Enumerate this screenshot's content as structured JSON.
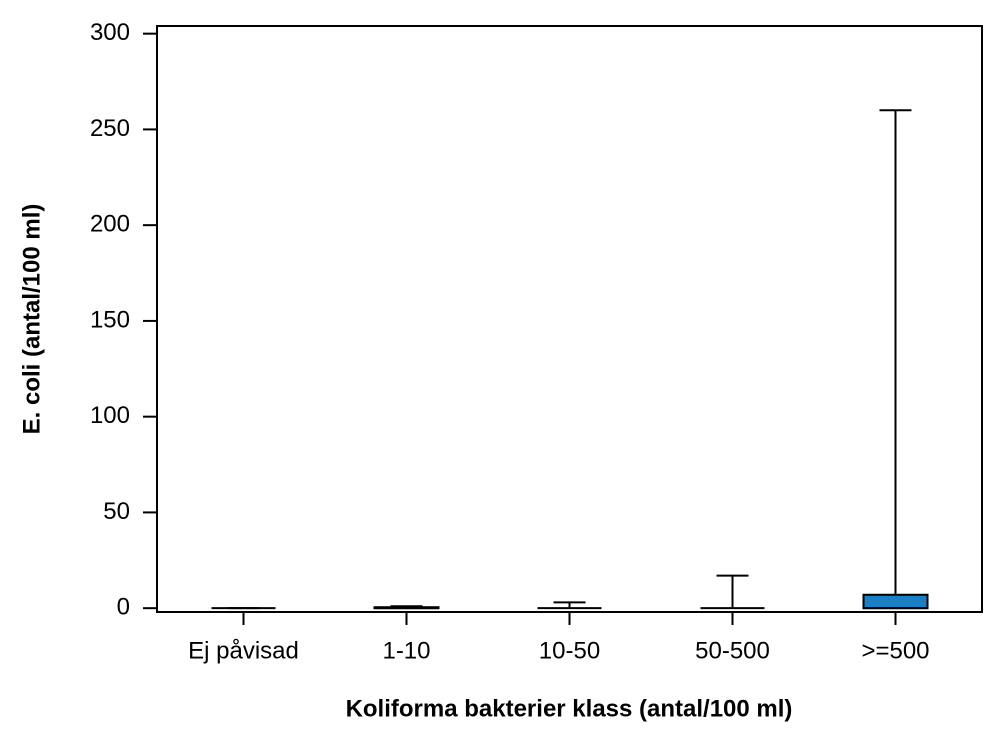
{
  "chart_data": {
    "type": "box",
    "x_label": "Koliforma bakterier klass (antal/100 ml)",
    "y_label": "E. coli (antal/100 ml)",
    "categories": [
      "Ej påvisad",
      "1-10",
      "10-50",
      "50-500",
      ">=500"
    ],
    "low": [
      0,
      0,
      0,
      0,
      0
    ],
    "q1": [
      0,
      0,
      0,
      0,
      0
    ],
    "median": [
      0,
      0,
      0,
      0,
      0
    ],
    "q3": [
      0,
      0.5,
      0,
      0,
      7
    ],
    "high": [
      0,
      1,
      3,
      17,
      260
    ],
    "color": "#1a7fc4",
    "ylim": [
      -2,
      304
    ],
    "yticks": [
      0,
      50,
      100,
      150,
      200,
      250,
      300
    ]
  }
}
